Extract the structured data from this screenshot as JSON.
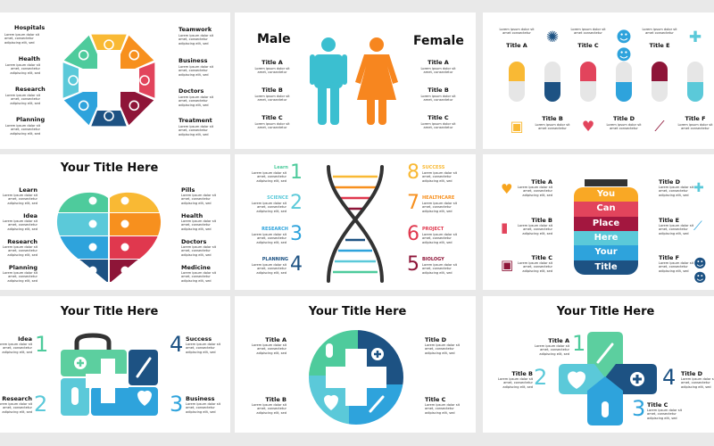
{
  "lorem": {
    "long": "Lorem ipsum dolor sit amet, consectetur adipiscing elit, sed",
    "short": "Lorem ipsum dolor sit amet, consectetur",
    "pill": "Lorem ipsum dolor sit amet consectetur"
  },
  "colors": {
    "yellow": "#f9b934",
    "orange": "#f7901e",
    "pink": "#e2445c",
    "maroon": "#8e1538",
    "darkblue": "#1d5283",
    "blue": "#2ea3dc",
    "teal": "#5bc9d9",
    "green": "#4ecb9c",
    "gray": "#e6e6e6",
    "male": "#3bbfd0",
    "female": "#f7861f"
  },
  "p1": {
    "left": [
      "Hospitals",
      "Health",
      "Research",
      "Planning"
    ],
    "right": [
      "Teamwork",
      "Business",
      "Doctors",
      "Treatment"
    ],
    "wheel_icons": [
      "lightbulb-icon",
      "people-icon",
      "briefcase-icon",
      "thermometer-icon",
      "pill-icon",
      "handshake-icon",
      "heart-icon",
      "plus-icon"
    ]
  },
  "p2": {
    "male": "Male",
    "female": "Female",
    "titles": [
      "Title A",
      "Title B",
      "Title C"
    ]
  },
  "p3": {
    "top": [
      "Title A",
      "Title C",
      "Title E"
    ],
    "bottom": [
      "Title B",
      "Title D",
      "Title F"
    ]
  },
  "p4": {
    "title": "Your Title Here",
    "left": [
      "Learn",
      "Idea",
      "Research",
      "Planning"
    ],
    "right": [
      "Pills",
      "Health",
      "Doctors",
      "Medicine"
    ]
  },
  "p5": {
    "left": [
      {
        "n": "1",
        "label": "Learn"
      },
      {
        "n": "2",
        "label": "SCIENCE"
      },
      {
        "n": "3",
        "label": "RESEARCH"
      },
      {
        "n": "4",
        "label": "PLANNING"
      }
    ],
    "right": [
      {
        "n": "8",
        "label": "SUCCESS"
      },
      {
        "n": "7",
        "label": "HEALTHCARE"
      },
      {
        "n": "6",
        "label": "PROJECT"
      },
      {
        "n": "5",
        "label": "BIOLOGY"
      }
    ]
  },
  "p6": {
    "jar": [
      "You",
      "Can",
      "Place",
      "Here",
      "Your",
      "Title"
    ],
    "left": [
      "Title A",
      "Title B",
      "Title C"
    ],
    "right": [
      "Title D",
      "Title E",
      "Title F"
    ]
  },
  "p7": {
    "title": "Your Title Here",
    "items": [
      {
        "n": "1",
        "label": "Idea"
      },
      {
        "n": "2",
        "label": "Research"
      },
      {
        "n": "4",
        "label": "Success"
      },
      {
        "n": "3",
        "label": "Business"
      }
    ]
  },
  "p8": {
    "title": "Your Title Here",
    "items": [
      "Title A",
      "Title B",
      "Title D",
      "Title C"
    ]
  },
  "p9": {
    "title": "Your Title Here",
    "items": [
      {
        "n": "1",
        "label": "Title A"
      },
      {
        "n": "2",
        "label": "Title B"
      },
      {
        "n": "4",
        "label": "Title D"
      },
      {
        "n": "3",
        "label": "Title C"
      }
    ]
  }
}
